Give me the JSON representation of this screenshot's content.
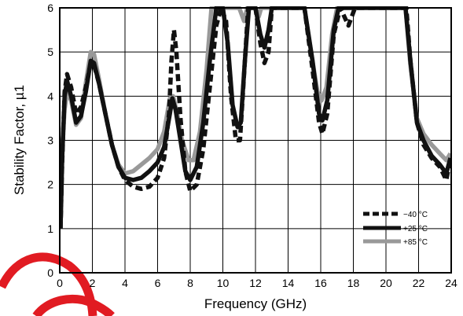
{
  "chart_data": {
    "type": "line",
    "xlabel": "Frequency (GHz)",
    "ylabel": "Stability Factor, µ1",
    "xlim": [
      0,
      24
    ],
    "ylim": [
      0,
      6
    ],
    "xticks": [
      "0",
      "2",
      "4",
      "6",
      "8",
      "10",
      "12",
      "14",
      "16",
      "18",
      "20",
      "22",
      "24"
    ],
    "yticks": [
      "0",
      "1",
      "2",
      "3",
      "4",
      "5",
      "6"
    ],
    "grid": true,
    "legend": "bottom-right",
    "series": [
      {
        "name": "−40 °C",
        "color": "#111111",
        "style": "dashed",
        "points": [
          [
            0.05,
            1.0
          ],
          [
            0.15,
            2.5
          ],
          [
            0.3,
            4.1
          ],
          [
            0.45,
            4.5
          ],
          [
            0.7,
            4.2
          ],
          [
            1.0,
            3.6
          ],
          [
            1.3,
            3.75
          ],
          [
            1.6,
            4.2
          ],
          [
            1.9,
            4.75
          ],
          [
            2.1,
            4.7
          ],
          [
            2.4,
            4.3
          ],
          [
            2.8,
            3.6
          ],
          [
            3.2,
            2.9
          ],
          [
            3.6,
            2.4
          ],
          [
            4.0,
            2.1
          ],
          [
            4.5,
            1.95
          ],
          [
            5.0,
            1.9
          ],
          [
            5.5,
            1.95
          ],
          [
            6.0,
            2.15
          ],
          [
            6.4,
            2.6
          ],
          [
            6.7,
            3.6
          ],
          [
            6.85,
            4.8
          ],
          [
            7.0,
            5.5
          ],
          [
            7.15,
            5.0
          ],
          [
            7.4,
            3.5
          ],
          [
            7.7,
            2.3
          ],
          [
            8.0,
            1.85
          ],
          [
            8.4,
            2.0
          ],
          [
            8.8,
            2.8
          ],
          [
            9.2,
            4.2
          ],
          [
            9.6,
            5.6
          ],
          [
            9.9,
            6.0
          ],
          [
            10.2,
            5.7
          ],
          [
            10.5,
            4.0
          ],
          [
            10.8,
            3.0
          ],
          [
            11.05,
            3.0
          ],
          [
            11.3,
            4.5
          ],
          [
            11.55,
            6.0
          ],
          [
            12.0,
            6.0
          ],
          [
            12.3,
            5.2
          ],
          [
            12.55,
            4.75
          ],
          [
            12.8,
            5.0
          ],
          [
            13.0,
            6.0
          ],
          [
            15.0,
            6.0
          ],
          [
            15.5,
            4.6
          ],
          [
            15.9,
            3.4
          ],
          [
            16.1,
            3.15
          ],
          [
            16.4,
            3.6
          ],
          [
            16.8,
            5.4
          ],
          [
            17.2,
            6.0
          ],
          [
            17.7,
            5.6
          ],
          [
            18.1,
            6.0
          ],
          [
            21.25,
            6.0
          ],
          [
            21.5,
            4.8
          ],
          [
            21.9,
            3.4
          ],
          [
            22.3,
            2.9
          ],
          [
            22.8,
            2.6
          ],
          [
            23.3,
            2.4
          ],
          [
            23.7,
            2.1
          ],
          [
            23.95,
            2.6
          ]
        ]
      },
      {
        "name": "+25 °C",
        "color": "#111111",
        "style": "solid",
        "points": [
          [
            0.05,
            1.0
          ],
          [
            0.15,
            2.6
          ],
          [
            0.3,
            4.0
          ],
          [
            0.45,
            4.35
          ],
          [
            0.7,
            4.0
          ],
          [
            1.0,
            3.4
          ],
          [
            1.3,
            3.55
          ],
          [
            1.6,
            4.1
          ],
          [
            1.9,
            4.8
          ],
          [
            2.1,
            4.75
          ],
          [
            2.4,
            4.3
          ],
          [
            2.8,
            3.6
          ],
          [
            3.2,
            2.9
          ],
          [
            3.6,
            2.4
          ],
          [
            4.0,
            2.15
          ],
          [
            4.5,
            2.1
          ],
          [
            5.0,
            2.15
          ],
          [
            5.5,
            2.3
          ],
          [
            6.0,
            2.5
          ],
          [
            6.4,
            2.85
          ],
          [
            6.75,
            3.6
          ],
          [
            6.9,
            3.95
          ],
          [
            7.1,
            3.7
          ],
          [
            7.4,
            3.0
          ],
          [
            7.7,
            2.3
          ],
          [
            8.0,
            2.1
          ],
          [
            8.4,
            2.4
          ],
          [
            8.8,
            3.4
          ],
          [
            9.2,
            4.8
          ],
          [
            9.6,
            6.0
          ],
          [
            10.0,
            6.0
          ],
          [
            10.3,
            5.2
          ],
          [
            10.6,
            3.8
          ],
          [
            10.9,
            3.3
          ],
          [
            11.1,
            3.4
          ],
          [
            11.35,
            4.8
          ],
          [
            11.6,
            6.0
          ],
          [
            12.0,
            6.0
          ],
          [
            12.3,
            5.4
          ],
          [
            12.55,
            5.1
          ],
          [
            12.8,
            5.5
          ],
          [
            13.0,
            6.0
          ],
          [
            15.0,
            6.0
          ],
          [
            15.5,
            4.8
          ],
          [
            15.9,
            3.6
          ],
          [
            16.1,
            3.45
          ],
          [
            16.4,
            3.9
          ],
          [
            16.8,
            5.5
          ],
          [
            17.1,
            6.0
          ],
          [
            21.2,
            6.0
          ],
          [
            21.5,
            4.8
          ],
          [
            21.9,
            3.4
          ],
          [
            22.3,
            3.0
          ],
          [
            22.8,
            2.65
          ],
          [
            23.3,
            2.45
          ],
          [
            23.7,
            2.25
          ],
          [
            23.95,
            2.6
          ]
        ]
      },
      {
        "name": "+85 °C",
        "color": "#999999",
        "style": "solid",
        "points": [
          [
            0.05,
            1.0
          ],
          [
            0.15,
            2.8
          ],
          [
            0.3,
            3.7
          ],
          [
            0.45,
            4.1
          ],
          [
            0.7,
            3.9
          ],
          [
            1.0,
            3.35
          ],
          [
            1.3,
            3.5
          ],
          [
            1.6,
            4.3
          ],
          [
            1.9,
            5.0
          ],
          [
            2.1,
            4.95
          ],
          [
            2.4,
            4.4
          ],
          [
            2.8,
            3.6
          ],
          [
            3.2,
            2.9
          ],
          [
            3.6,
            2.45
          ],
          [
            4.0,
            2.25
          ],
          [
            4.5,
            2.3
          ],
          [
            5.0,
            2.45
          ],
          [
            5.5,
            2.6
          ],
          [
            6.0,
            2.8
          ],
          [
            6.4,
            3.2
          ],
          [
            6.75,
            3.95
          ],
          [
            6.95,
            4.0
          ],
          [
            7.2,
            3.6
          ],
          [
            7.5,
            3.0
          ],
          [
            7.9,
            2.55
          ],
          [
            8.2,
            2.55
          ],
          [
            8.6,
            3.2
          ],
          [
            9.0,
            4.6
          ],
          [
            9.3,
            6.0
          ],
          [
            11.0,
            6.0
          ],
          [
            11.3,
            5.7
          ],
          [
            11.5,
            6.0
          ],
          [
            12.0,
            6.0
          ],
          [
            12.2,
            5.8
          ],
          [
            12.35,
            6.0
          ],
          [
            15.0,
            6.0
          ],
          [
            15.4,
            5.0
          ],
          [
            15.8,
            4.1
          ],
          [
            16.05,
            3.9
          ],
          [
            16.35,
            4.2
          ],
          [
            16.7,
            5.4
          ],
          [
            17.0,
            6.0
          ],
          [
            21.2,
            6.0
          ],
          [
            21.5,
            4.7
          ],
          [
            21.9,
            3.5
          ],
          [
            22.3,
            3.15
          ],
          [
            22.8,
            2.9
          ],
          [
            23.3,
            2.7
          ],
          [
            23.7,
            2.55
          ],
          [
            23.95,
            2.7
          ]
        ]
      }
    ]
  }
}
